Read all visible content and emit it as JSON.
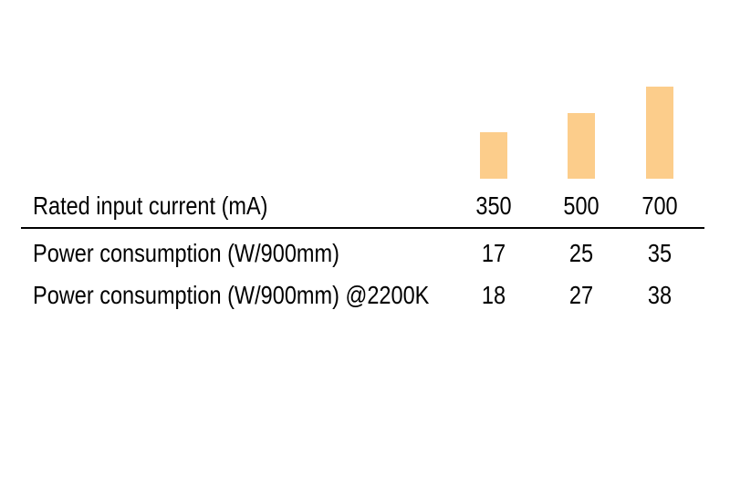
{
  "chart_data": {
    "type": "bar",
    "categories": [
      "350",
      "500",
      "700"
    ],
    "values": [
      350,
      500,
      700
    ],
    "title": "",
    "xlabel": "Rated input current (mA)",
    "ylabel": "",
    "ylim": [
      0,
      700
    ],
    "grid": false,
    "legend": false,
    "bar_color": "#FCCD8B"
  },
  "table": {
    "header": {
      "label": "Rated input current (mA)",
      "values": [
        "350",
        "500",
        "700"
      ]
    },
    "rows": [
      {
        "label": "Power consumption (W/900mm)",
        "values": [
          "17",
          "25",
          "35"
        ]
      },
      {
        "label": "Power consumption (W/900mm) @2200K",
        "values": [
          "18",
          "27",
          "38"
        ]
      }
    ]
  },
  "colors": {
    "bar": "#FCCD8B",
    "text": "#000000",
    "separator": "#000000",
    "background": "#ffffff"
  }
}
